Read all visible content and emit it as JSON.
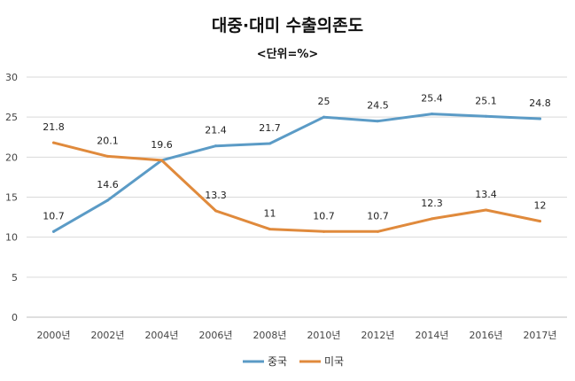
{
  "chart_data": {
    "type": "line",
    "title": "대중·대미 수출의존도",
    "subtitle": "<단위=%>",
    "categories": [
      "2000년",
      "2002년",
      "2004년",
      "2006년",
      "2008년",
      "2010년",
      "2012년",
      "2014년",
      "2016년",
      "2017년"
    ],
    "series": [
      {
        "name": "중국",
        "color": "#5b9bc6",
        "values": [
          10.7,
          14.6,
          19.6,
          21.4,
          21.7,
          25,
          24.5,
          25.4,
          25.1,
          24.8
        ]
      },
      {
        "name": "미국",
        "color": "#e08a3c",
        "values": [
          21.8,
          20.1,
          19.6,
          13.3,
          11,
          10.7,
          10.7,
          12.3,
          13.4,
          12
        ]
      }
    ],
    "value_labels": {
      "중국": [
        "10.7",
        "14.6",
        "19.6",
        "21.4",
        "21.7",
        "25",
        "24.5",
        "25.4",
        "25.1",
        "24.8"
      ],
      "미국": [
        "21.8",
        "20.1",
        "",
        "13.3",
        "11",
        "10.7",
        "10.7",
        "12.3",
        "13.4",
        "12"
      ]
    },
    "ylim": [
      0,
      30
    ],
    "yticks": [
      "0",
      "5",
      "10",
      "15",
      "20",
      "25",
      "30"
    ],
    "grid": true,
    "legend": "bottom"
  }
}
